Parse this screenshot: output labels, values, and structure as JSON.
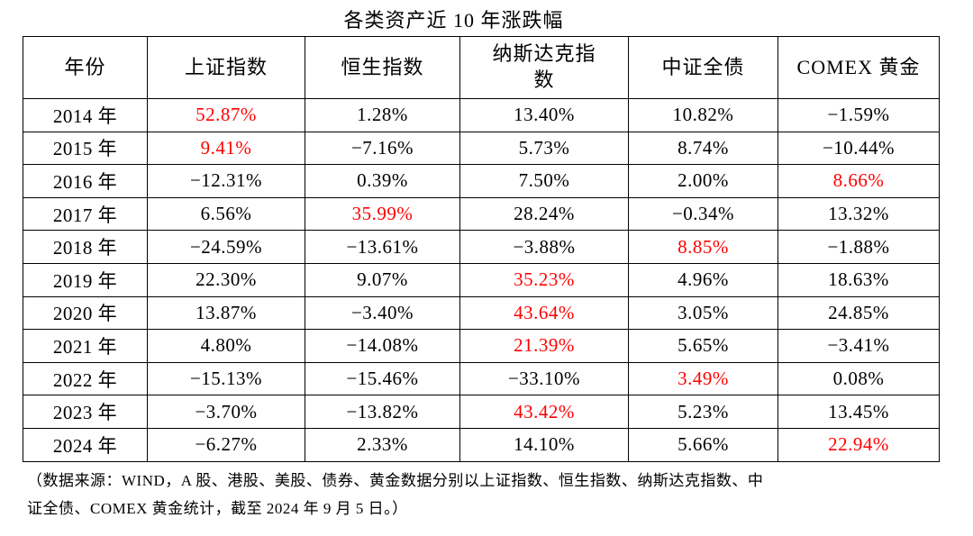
{
  "title": "各类资产近 10 年涨跌幅",
  "colors": {
    "highlight_red": "#ff0000",
    "text": "#000000",
    "border": "#000000",
    "background": "#ffffff"
  },
  "table": {
    "columns": [
      "年份",
      "上证指数",
      "恒生指数",
      "纳斯达克指数",
      "中证全债",
      "COMEX 黄金"
    ],
    "rows": [
      {
        "year": "2014 年",
        "cells": [
          {
            "v": "52.87%",
            "red": true
          },
          {
            "v": "1.28%"
          },
          {
            "v": "13.40%"
          },
          {
            "v": "10.82%"
          },
          {
            "v": "−1.59%"
          }
        ]
      },
      {
        "year": "2015 年",
        "cells": [
          {
            "v": "9.41%",
            "red": true
          },
          {
            "v": "−7.16%"
          },
          {
            "v": "5.73%"
          },
          {
            "v": "8.74%"
          },
          {
            "v": "−10.44%"
          }
        ]
      },
      {
        "year": "2016 年",
        "cells": [
          {
            "v": "−12.31%"
          },
          {
            "v": "0.39%"
          },
          {
            "v": "7.50%"
          },
          {
            "v": "2.00%"
          },
          {
            "v": "8.66%",
            "red": true
          }
        ]
      },
      {
        "year": "2017 年",
        "cells": [
          {
            "v": "6.56%"
          },
          {
            "v": "35.99%",
            "red": true
          },
          {
            "v": "28.24%"
          },
          {
            "v": "−0.34%"
          },
          {
            "v": "13.32%"
          }
        ]
      },
      {
        "year": "2018 年",
        "cells": [
          {
            "v": "−24.59%"
          },
          {
            "v": "−13.61%"
          },
          {
            "v": "−3.88%"
          },
          {
            "v": "8.85%",
            "red": true
          },
          {
            "v": "−1.88%"
          }
        ]
      },
      {
        "year": "2019 年",
        "cells": [
          {
            "v": "22.30%"
          },
          {
            "v": "9.07%"
          },
          {
            "v": "35.23%",
            "red": true
          },
          {
            "v": "4.96%"
          },
          {
            "v": "18.63%"
          }
        ]
      },
      {
        "year": "2020 年",
        "cells": [
          {
            "v": "13.87%"
          },
          {
            "v": "−3.40%"
          },
          {
            "v": "43.64%",
            "red": true
          },
          {
            "v": "3.05%"
          },
          {
            "v": "24.85%"
          }
        ]
      },
      {
        "year": "2021 年",
        "cells": [
          {
            "v": "4.80%"
          },
          {
            "v": "−14.08%"
          },
          {
            "v": "21.39%",
            "red": true
          },
          {
            "v": "5.65%"
          },
          {
            "v": "−3.41%"
          }
        ]
      },
      {
        "year": "2022 年",
        "cells": [
          {
            "v": "−15.13%"
          },
          {
            "v": "−15.46%"
          },
          {
            "v": "−33.10%"
          },
          {
            "v": "3.49%",
            "red": true
          },
          {
            "v": "0.08%"
          }
        ]
      },
      {
        "year": "2023 年",
        "cells": [
          {
            "v": "−3.70%"
          },
          {
            "v": "−13.82%"
          },
          {
            "v": "43.42%",
            "red": true
          },
          {
            "v": "5.23%"
          },
          {
            "v": "13.45%"
          }
        ]
      },
      {
        "year": "2024 年",
        "cells": [
          {
            "v": "−6.27%"
          },
          {
            "v": "2.33%"
          },
          {
            "v": "14.10%"
          },
          {
            "v": "5.66%"
          },
          {
            "v": "22.94%",
            "red": true
          }
        ]
      }
    ]
  },
  "footnote": {
    "lines": [
      "（数据来源：WIND，A 股、港股、美股、债券、黄金数据分别以上证指数、恒生指数、纳斯达克指数、中",
      "证全债、COMEX 黄金统计，截至 2024 年 9 月 5 日。）"
    ]
  },
  "chart_data": {
    "type": "table",
    "title": "各类资产近 10 年涨跌幅",
    "unit": "%",
    "categories": [
      "2014",
      "2015",
      "2016",
      "2017",
      "2018",
      "2019",
      "2020",
      "2021",
      "2022",
      "2023",
      "2024"
    ],
    "series": [
      {
        "name": "上证指数",
        "values": [
          52.87,
          9.41,
          -12.31,
          6.56,
          -24.59,
          22.3,
          13.87,
          4.8,
          -15.13,
          -3.7,
          -6.27
        ]
      },
      {
        "name": "恒生指数",
        "values": [
          1.28,
          -7.16,
          0.39,
          35.99,
          -13.61,
          9.07,
          -3.4,
          -14.08,
          -15.46,
          -13.82,
          2.33
        ]
      },
      {
        "name": "纳斯达克指数",
        "values": [
          13.4,
          5.73,
          7.5,
          28.24,
          -3.88,
          35.23,
          43.64,
          21.39,
          -33.1,
          43.42,
          14.1
        ]
      },
      {
        "name": "中证全债",
        "values": [
          10.82,
          8.74,
          2.0,
          -0.34,
          8.85,
          4.96,
          3.05,
          5.65,
          3.49,
          5.23,
          5.66
        ]
      },
      {
        "name": "COMEX 黄金",
        "values": [
          -1.59,
          -10.44,
          8.66,
          13.32,
          -1.88,
          18.63,
          24.85,
          -3.41,
          0.08,
          13.45,
          22.94
        ]
      }
    ]
  }
}
